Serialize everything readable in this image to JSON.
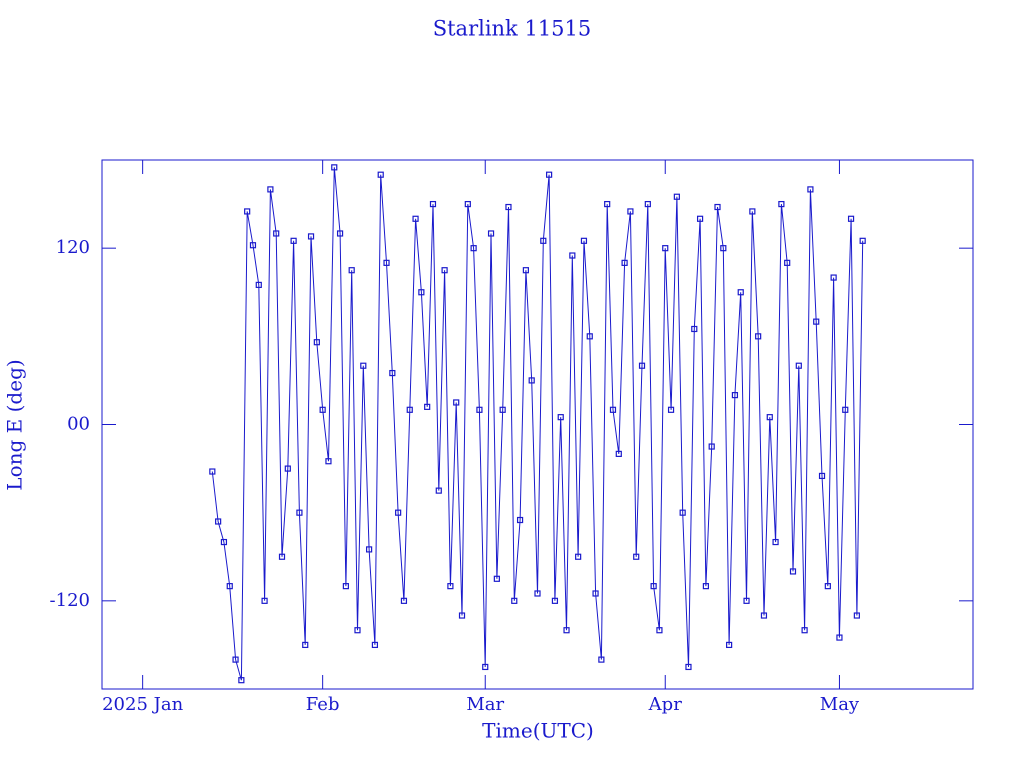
{
  "chart_data": {
    "type": "line",
    "title": "Starlink 11515",
    "x_label": "Time(UTC)",
    "y_label": "Long E (deg)",
    "color": "#1a1acc",
    "markers": true,
    "xlim": [
      -7,
      143
    ],
    "xticks": [
      {
        "value": 0,
        "label": "2025 Jan"
      },
      {
        "value": 31,
        "label": "Feb"
      },
      {
        "value": 59,
        "label": "Mar"
      },
      {
        "value": 90,
        "label": "Apr"
      },
      {
        "value": 120,
        "label": "May"
      }
    ],
    "ylim": [
      -180,
      180
    ],
    "yticks": [
      -120,
      {
        "value": 0,
        "label": "00"
      },
      120
    ],
    "x": [
      12,
      13,
      14,
      15,
      16,
      17,
      18,
      19,
      20,
      21,
      22,
      23,
      24,
      25,
      26,
      27,
      28,
      29,
      30,
      31,
      32,
      33,
      34,
      35,
      36,
      37,
      38,
      39,
      40,
      41,
      42,
      43,
      44,
      45,
      46,
      47,
      48,
      49,
      50,
      51,
      52,
      53,
      54,
      55,
      56,
      57,
      58,
      59,
      60,
      61,
      62,
      63,
      64,
      65,
      66,
      67,
      68,
      69,
      70,
      71,
      72,
      73,
      74,
      75,
      76,
      77,
      78,
      79,
      80,
      81,
      82,
      83,
      84,
      85,
      86,
      87,
      88,
      89,
      90,
      91,
      92,
      93,
      94,
      95,
      96,
      97,
      98,
      99,
      100,
      101,
      102,
      103,
      104,
      105,
      106,
      107,
      108,
      109,
      110,
      111,
      112,
      113,
      114,
      115,
      116,
      117,
      118,
      119,
      120,
      121,
      122,
      123,
      124
    ],
    "values": [
      -32,
      -66,
      -80,
      -110,
      -160,
      -174,
      145,
      122,
      95,
      -120,
      160,
      130,
      -90,
      -30,
      125,
      -60,
      -150,
      128,
      56,
      10,
      -25,
      175,
      130,
      -110,
      105,
      -140,
      40,
      -85,
      -150,
      170,
      110,
      35,
      -60,
      -120,
      10,
      140,
      90,
      12,
      150,
      -45,
      105,
      -110,
      15,
      -130,
      150,
      120,
      10,
      -165,
      130,
      -105,
      10,
      148,
      -120,
      -65,
      105,
      30,
      -115,
      125,
      170,
      -120,
      5,
      -140,
      115,
      -90,
      125,
      60,
      -115,
      -160,
      150,
      10,
      -20,
      110,
      145,
      -90,
      40,
      150,
      -110,
      -140,
      120,
      10,
      155,
      -60,
      -165,
      65,
      140,
      -110,
      -15,
      148,
      120,
      -150,
      20,
      90,
      -120,
      145,
      60,
      -130,
      5,
      -80,
      150,
      110,
      -100,
      40,
      -140,
      160,
      70,
      -35,
      -110,
      100,
      -145,
      10,
      140,
      -130,
      125
    ]
  }
}
